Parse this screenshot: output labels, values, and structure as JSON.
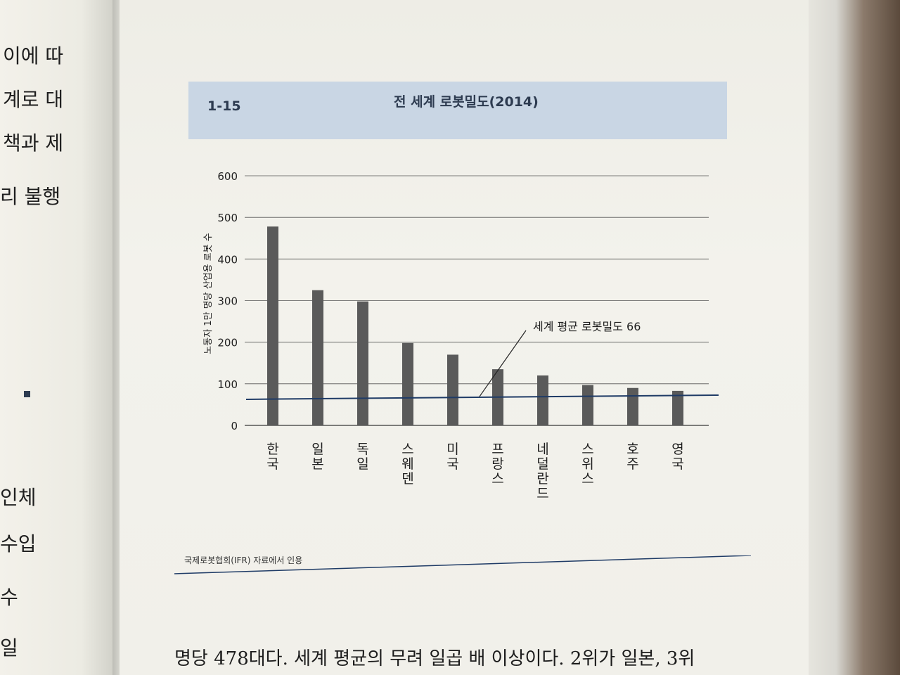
{
  "left_page": {
    "lines": [
      "이에 따",
      "계로 대",
      "책과 제",
      "리 불행",
      "인체",
      "수입",
      "수",
      "일"
    ]
  },
  "figure": {
    "number": "1-15",
    "title": "전 세계 로봇밀도(2014)",
    "source": "국제로봇협회(IFR) 자료에서 인용"
  },
  "chart_data": {
    "type": "bar",
    "title": "전 세계 로봇밀도(2014)",
    "ylabel": "노동자 1만 명당 산업용 로봇 수",
    "xlabel": "",
    "categories": [
      "한국",
      "일본",
      "독일",
      "스웨덴",
      "미국",
      "프랑스",
      "네덜란드",
      "스위스",
      "호주",
      "영국"
    ],
    "values": [
      478,
      325,
      298,
      198,
      170,
      135,
      120,
      97,
      90,
      83
    ],
    "ylim": [
      0,
      600
    ],
    "yticks": [
      "0",
      "100",
      "200",
      "300",
      "400",
      "500",
      "600"
    ],
    "grid": true,
    "reference_line": {
      "value": 66,
      "label": "세계 평균 로봇밀도 66"
    },
    "colors": {
      "bar": "#5a5a5a",
      "reference": "#1f3b66",
      "grid": "#555555"
    }
  },
  "body_text": "명당 478대다. 세계 평균의 무려 일곱 배 이상이다. 2위가 일본, 3위"
}
